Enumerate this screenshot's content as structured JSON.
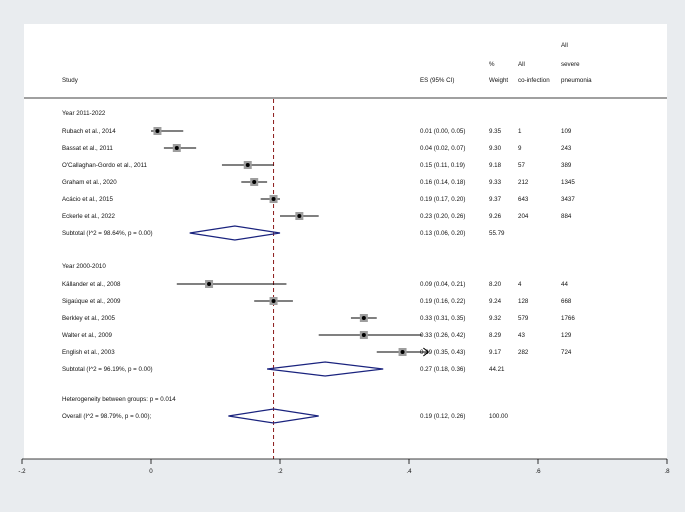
{
  "chart_data": {
    "type": "forest",
    "headers": {
      "study": "Study",
      "es": "ES (95% CI)",
      "weight": [
        "%",
        "Weight"
      ],
      "coinfection": [
        "All",
        "co-infection"
      ],
      "severe": [
        "All",
        "severe",
        "pneumonia"
      ]
    },
    "xlim": [
      -0.2,
      0.8
    ],
    "ticks": [
      {
        "value": -0.2,
        "label": "-.2"
      },
      {
        "value": 0,
        "label": "0"
      },
      {
        "value": 0.2,
        "label": ".2"
      },
      {
        "value": 0.4,
        "label": ".4"
      },
      {
        "value": 0.6,
        "label": ".6"
      },
      {
        "value": 0.8,
        "label": ".8"
      }
    ],
    "reference_line": 0.19,
    "groups": [
      {
        "label": "Year 2011-2022",
        "studies": [
          {
            "name": "Rubach et al., 2014",
            "es": 0.01,
            "lo": 0.0,
            "hi": 0.05,
            "es_text": "0.01 (0.00, 0.05)",
            "weight": "9.35",
            "coinf": "1",
            "severe": "109"
          },
          {
            "name": "Bassat et al., 2011",
            "es": 0.04,
            "lo": 0.02,
            "hi": 0.07,
            "es_text": "0.04 (0.02, 0.07)",
            "weight": "9.30",
            "coinf": "9",
            "severe": "243"
          },
          {
            "name": "O'Callaghan-Gordo et al., 2011",
            "es": 0.15,
            "lo": 0.11,
            "hi": 0.19,
            "es_text": "0.15 (0.11, 0.19)",
            "weight": "9.18",
            "coinf": "57",
            "severe": "389"
          },
          {
            "name": "Graham et al., 2020",
            "es": 0.16,
            "lo": 0.14,
            "hi": 0.18,
            "es_text": "0.16 (0.14, 0.18)",
            "weight": "9.33",
            "coinf": "212",
            "severe": "1345"
          },
          {
            "name": "Acácio et al., 2015",
            "es": 0.19,
            "lo": 0.17,
            "hi": 0.2,
            "es_text": "0.19 (0.17, 0.20)",
            "weight": "9.37",
            "coinf": "643",
            "severe": "3437"
          },
          {
            "name": "Eckerle et al., 2022",
            "es": 0.23,
            "lo": 0.2,
            "hi": 0.26,
            "es_text": "0.23 (0.20, 0.26)",
            "weight": "9.26",
            "coinf": "204",
            "severe": "884"
          }
        ],
        "subtotal": {
          "label": "Subtotal  (I^2 = 98.64%, p = 0.00)",
          "es": 0.13,
          "lo": 0.06,
          "hi": 0.2,
          "es_text": "0.13 (0.06, 0.20)",
          "weight": "55.79"
        }
      },
      {
        "label": "Year 2000-2010",
        "studies": [
          {
            "name": "Källander et al., 2008",
            "es": 0.09,
            "lo": 0.04,
            "hi": 0.21,
            "es_text": "0.09 (0.04, 0.21)",
            "weight": "8.20",
            "coinf": "4",
            "severe": "44"
          },
          {
            "name": "Sigaúque et al., 2009",
            "es": 0.19,
            "lo": 0.16,
            "hi": 0.22,
            "es_text": "0.19 (0.16, 0.22)",
            "weight": "9.24",
            "coinf": "128",
            "severe": "668"
          },
          {
            "name": "Berkley et al., 2005",
            "es": 0.33,
            "lo": 0.31,
            "hi": 0.35,
            "es_text": "0.33 (0.31, 0.35)",
            "weight": "9.32",
            "coinf": "579",
            "severe": "1766"
          },
          {
            "name": "Walter et al., 2009",
            "es": 0.33,
            "lo": 0.26,
            "hi": 0.42,
            "es_text": "0.33 (0.26, 0.42)",
            "weight": "8.29",
            "coinf": "43",
            "severe": "129"
          },
          {
            "name": "English et al., 2003",
            "es": 0.39,
            "lo": 0.35,
            "hi": 0.43,
            "es_text": "0.39 (0.35, 0.43)",
            "weight": "9.17",
            "coinf": "282",
            "severe": "724",
            "arrow": true
          }
        ],
        "subtotal": {
          "label": "Subtotal  (I^2 = 96.19%, p = 0.00)",
          "es": 0.27,
          "lo": 0.18,
          "hi": 0.36,
          "es_text": "0.27 (0.18, 0.36)",
          "weight": "44.21"
        }
      }
    ],
    "heterogeneity": "Heterogeneity between groups: p = 0.014",
    "overall": {
      "label": "Overall  (I^2 = 98.79%, p = 0.00);",
      "es": 0.19,
      "lo": 0.12,
      "hi": 0.26,
      "es_text": "0.19 (0.12, 0.26)",
      "weight": "100.00"
    },
    "colors": {
      "background": "#e9ecef",
      "panel": "#ffffff",
      "diamond": "#1a237e",
      "ci": "#000000",
      "reference": "#8b1a1a",
      "weight_box": "#9e9e9e"
    }
  }
}
